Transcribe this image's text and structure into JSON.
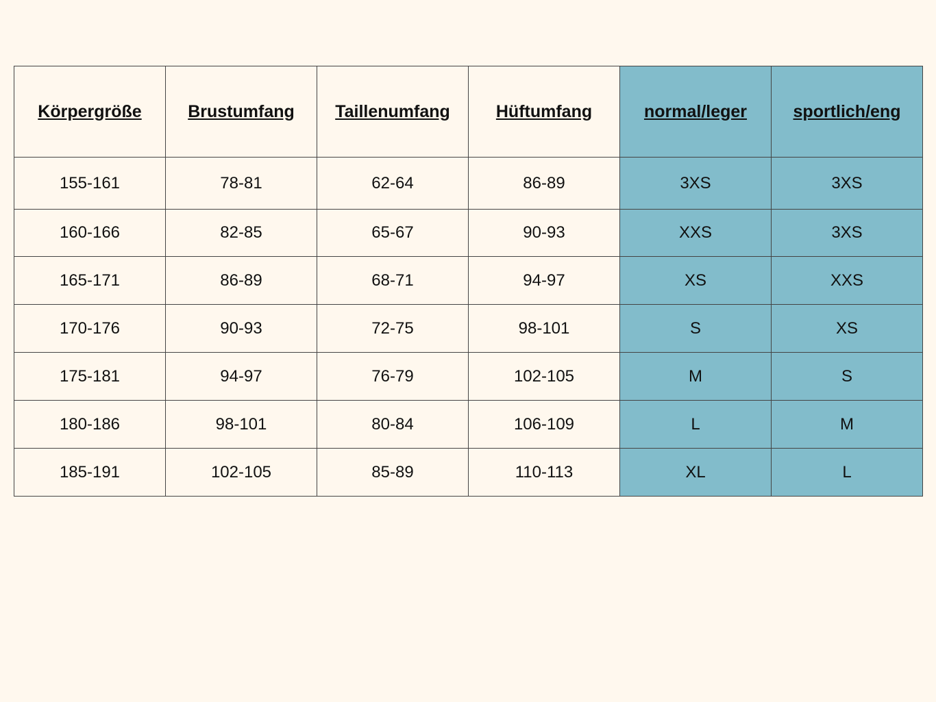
{
  "headers": [
    "Körpergröße",
    "Brustumfang",
    "Taillenumfang",
    "Hüftumfang",
    "normal/leger",
    "sportlich/eng"
  ],
  "rows": [
    [
      "155-161",
      "78-81",
      "62-64",
      "86-89",
      "3XS",
      "3XS"
    ],
    [
      "160-166",
      "82-85",
      "65-67",
      "90-93",
      "XXS",
      "3XS"
    ],
    [
      "165-171",
      "86-89",
      "68-71",
      "94-97",
      "XS",
      "XXS"
    ],
    [
      "170-176",
      "90-93",
      "72-75",
      "98-101",
      "S",
      "XS"
    ],
    [
      "175-181",
      "94-97",
      "76-79",
      "102-105",
      "M",
      "S"
    ],
    [
      "180-186",
      "98-101",
      "80-84",
      "106-109",
      "L",
      "M"
    ],
    [
      "185-191",
      "102-105",
      "85-89",
      "110-113",
      "XL",
      "L"
    ]
  ],
  "colors": {
    "background": "#fff8ee",
    "highlight_columns": "#82bccb",
    "border": "#444444"
  }
}
